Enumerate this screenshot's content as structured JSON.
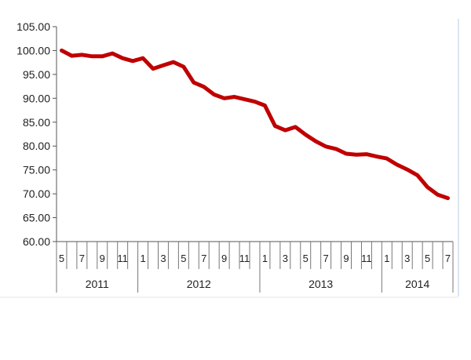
{
  "chart_data": {
    "type": "line",
    "title": "",
    "xlabel": "",
    "ylabel": "",
    "ylim": [
      60,
      105
    ],
    "y_ticks": [
      "60.00",
      "65.00",
      "70.00",
      "75.00",
      "80.00",
      "85.00",
      "90.00",
      "95.00",
      "100.00",
      "105.00"
    ],
    "y_tick_values": [
      60,
      65,
      70,
      75,
      80,
      85,
      90,
      95,
      100,
      105
    ],
    "grid": false,
    "legend": "none",
    "years": [
      {
        "label": "2011",
        "start": 0,
        "count": 8
      },
      {
        "label": "2012",
        "start": 8,
        "count": 12
      },
      {
        "label": "2013",
        "start": 20,
        "count": 12
      },
      {
        "label": "2014",
        "start": 32,
        "count": 7
      }
    ],
    "x": [
      "5",
      "6",
      "7",
      "8",
      "9",
      "10",
      "11",
      "12",
      "1",
      "2",
      "3",
      "4",
      "5",
      "6",
      "7",
      "8",
      "9",
      "10",
      "11",
      "12",
      "1",
      "2",
      "3",
      "4",
      "5",
      "6",
      "7",
      "8",
      "9",
      "10",
      "11",
      "12",
      "1",
      "2",
      "3",
      "4",
      "5",
      "6",
      "7"
    ],
    "x_tick_labels": [
      "5",
      "",
      "7",
      "",
      "9",
      "",
      "11",
      "",
      "1",
      "",
      "3",
      "",
      "5",
      "",
      "7",
      "",
      "9",
      "",
      "11",
      "",
      "1",
      "",
      "3",
      "",
      "5",
      "",
      "7",
      "",
      "9",
      "",
      "11",
      "",
      "1",
      "",
      "3",
      "",
      "5",
      "",
      "7"
    ],
    "series": [
      {
        "color": "#c00000",
        "values": [
          100.0,
          98.9,
          99.1,
          98.8,
          98.8,
          99.4,
          98.4,
          97.8,
          98.4,
          96.2,
          96.9,
          97.6,
          96.6,
          93.3,
          92.4,
          90.8,
          90.0,
          90.3,
          89.8,
          89.3,
          88.5,
          84.2,
          83.3,
          84.0,
          82.4,
          81.0,
          79.9,
          79.4,
          78.4,
          78.2,
          78.3,
          77.8,
          77.4,
          76.1,
          75.1,
          73.9,
          71.4,
          69.8,
          69.1
        ]
      }
    ]
  }
}
